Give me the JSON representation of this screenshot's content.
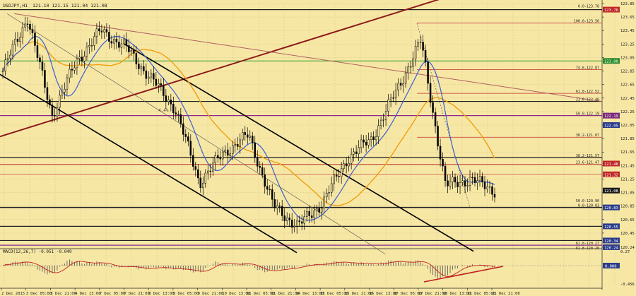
{
  "window": {
    "title": "USDJPY,H1",
    "ohlc": "121.10 121.15 121.04 121.08"
  },
  "colors": {
    "background": "#f7e7a5",
    "grid": "#d4c688",
    "text": "#202020",
    "candle": "#000000",
    "ma_fast": "#3b5fd3",
    "ma_slow": "#f0a010",
    "trend_thick": "#8b1a1a",
    "trend_thin": "#b06060",
    "channel": "#000000",
    "fib_line": "#c03030",
    "level_green": "#2e9a2e",
    "level_purple": "#8b2a8b",
    "macd_bar": "#505050",
    "macd_signal": "#c02020",
    "tag_blue": "#2a3c8a",
    "tag_red": "#c02828",
    "tag_purple": "#7a2a7a",
    "tag_green": "#2a8a2a",
    "tag_black": "#1a1a1a"
  },
  "price_axis": {
    "min": 120.24,
    "max": 123.85,
    "ticks": [
      "123.85",
      "123.65",
      "123.45",
      "123.25",
      "123.05",
      "122.85",
      "122.65",
      "122.45",
      "122.25",
      "122.05",
      "121.85",
      "121.65",
      "121.45",
      "121.25",
      "121.05",
      "120.85",
      "120.65",
      "120.45",
      "120.24"
    ]
  },
  "price_tags": [
    {
      "price": 123.76,
      "label": "123.76",
      "color": "#c02828"
    },
    {
      "price": 123.0,
      "label": "123.00",
      "color": "#2a8a2a"
    },
    {
      "price": 122.19,
      "label": "122.19",
      "color": "#7a2a7a"
    },
    {
      "price": 122.05,
      "label": "122.05",
      "color": "#2a3c8a"
    },
    {
      "price": 121.48,
      "label": "121.48",
      "color": "#c02828"
    },
    {
      "price": 121.32,
      "label": "121.32",
      "color": "#c02828"
    },
    {
      "price": 121.08,
      "label": "121.08",
      "color": "#1a1a1a"
    },
    {
      "price": 120.83,
      "label": "120.83",
      "color": "#2a3c8a"
    },
    {
      "price": 120.55,
      "label": "120.55",
      "color": "#2a3c8a"
    },
    {
      "price": 120.34,
      "label": "120.34",
      "color": "#2a3c8a"
    },
    {
      "price": 120.24,
      "label": "120.24",
      "color": "#2a3c8a"
    }
  ],
  "fib_labels": [
    {
      "price": 123.78,
      "label": "0.0-123.78"
    },
    {
      "price": 123.56,
      "label": "100.0-123.56"
    },
    {
      "price": 122.87,
      "label": "74.6-122.87"
    },
    {
      "price": 122.52,
      "label": "61.8-122.52"
    },
    {
      "price": 122.4,
      "label": "23.6-122.40"
    },
    {
      "price": 122.19,
      "label": "50.0-122.19"
    },
    {
      "price": 121.87,
      "label": "38.2-121.87"
    },
    {
      "price": 121.57,
      "label": "38.2-121.57"
    },
    {
      "price": 121.47,
      "label": "23.6-121.47"
    },
    {
      "price": 120.9,
      "label": "50.0-120.90"
    },
    {
      "price": 120.83,
      "label": "0.0-120.83"
    },
    {
      "price": 120.27,
      "label": "61.8-120.27"
    },
    {
      "price": 120.2,
      "label": "61.8-120.20"
    }
  ],
  "time_axis": [
    {
      "label": "2 Dec 2015",
      "pos": 0.0
    },
    {
      "label": "3 Dec 05:00",
      "pos": 0.05
    },
    {
      "label": "3 Dec 21:00",
      "pos": 0.1
    },
    {
      "label": "4 Dec 13:00",
      "pos": 0.15
    },
    {
      "label": "7 Dec 05:00",
      "pos": 0.2
    },
    {
      "label": "7 Dec 21:00",
      "pos": 0.25
    },
    {
      "label": "8 Dec 13:00",
      "pos": 0.3
    },
    {
      "label": "9 Dec 05:00",
      "pos": 0.35
    },
    {
      "label": "9 Dec 21:00",
      "pos": 0.4
    },
    {
      "label": "10 Dec 13:00",
      "pos": 0.45
    },
    {
      "label": "11 Dec 05:00",
      "pos": 0.5
    },
    {
      "label": "11 Dec 21:00",
      "pos": 0.55
    },
    {
      "label": "14 Dec 13:00",
      "pos": 0.6
    },
    {
      "label": "15 Dec 05:00",
      "pos": 0.65
    },
    {
      "label": "15 Dec 21:00",
      "pos": 0.7
    },
    {
      "label": "16 Dec 13:00",
      "pos": 0.75
    },
    {
      "label": "17 Dec 05:00",
      "pos": 0.8
    },
    {
      "label": "17 Dec 21:00",
      "pos": 0.85
    },
    {
      "label": "18 Dec 13:00",
      "pos": 0.9
    },
    {
      "label": "21 Dec 05:00",
      "pos": 0.95
    },
    {
      "label": "21 Dec 21:00",
      "pos": 1.0
    }
  ],
  "trend_label": "4.4%",
  "macd": {
    "label": "MACD(12,26,7) -0.051 -0.049",
    "axis_top": "0.27",
    "axis_zero": "0.000",
    "axis_bottom": "-0.456"
  },
  "chart_data": {
    "type": "line",
    "title": "USDJPY,H1",
    "close_path": [
      [
        "2 Dec 2015",
        122.85
      ],
      [
        "3 Dec 05:00",
        123.65
      ],
      [
        "3 Dec 21:00",
        122.2
      ],
      [
        "4 Dec 13:00",
        123.0
      ],
      [
        "7 Dec 05:00",
        123.45
      ],
      [
        "7 Dec 21:00",
        123.2
      ],
      [
        "8 Dec 13:00",
        122.75
      ],
      [
        "9 Dec 05:00",
        122.3
      ],
      [
        "9 Dec 21:00",
        121.2
      ],
      [
        "10 Dec 13:00",
        121.65
      ],
      [
        "11 Dec 05:00",
        121.9
      ],
      [
        "11 Dec 21:00",
        120.85
      ],
      [
        "14 Dec 13:00",
        120.55
      ],
      [
        "15 Dec 05:00",
        120.9
      ],
      [
        "15 Dec 21:00",
        121.55
      ],
      [
        "16 Dec 13:00",
        121.85
      ],
      [
        "17 Dec 05:00",
        122.55
      ],
      [
        "17 Dec 21:00",
        123.3
      ],
      [
        "18 Dec 13:00",
        121.15
      ],
      [
        "21 Dec 05:00",
        121.25
      ],
      [
        "21 Dec 21:00",
        121.08
      ]
    ],
    "ylim": [
      120.24,
      123.85
    ]
  }
}
